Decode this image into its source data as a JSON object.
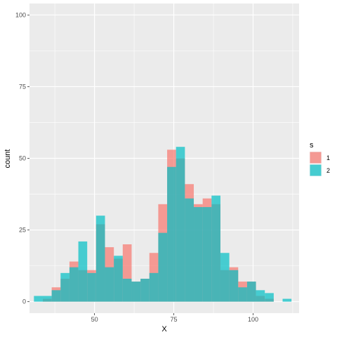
{
  "chart_data": {
    "type": "histogram",
    "xlabel": "X",
    "ylabel": "count",
    "xlim": [
      29.5,
      114.5
    ],
    "ylim": [
      -4,
      104
    ],
    "bin_width": 2.8,
    "x_ticks": [
      50,
      75,
      100
    ],
    "y_ticks": [
      0,
      25,
      50,
      75,
      100
    ],
    "grid": true,
    "legend": {
      "title": "s",
      "position": "right",
      "entries": [
        "1",
        "2"
      ]
    },
    "bin_starts": [
      30.9,
      33.7,
      36.5,
      39.3,
      42.1,
      44.9,
      47.7,
      50.5,
      53.3,
      56.1,
      58.9,
      61.7,
      64.5,
      67.3,
      70.1,
      72.9,
      75.7,
      78.5,
      81.3,
      84.1,
      86.9,
      89.7,
      92.5,
      95.3,
      98.1,
      100.9,
      103.7,
      106.5,
      109.3
    ],
    "series": [
      {
        "name": "1",
        "color": "#F8766D",
        "values": [
          0,
          1,
          5,
          8,
          14,
          11,
          11,
          27,
          19,
          15,
          20,
          7,
          8,
          17,
          34,
          53,
          50,
          41,
          34,
          36,
          34,
          11,
          12,
          7,
          7,
          2,
          1,
          0,
          0
        ]
      },
      {
        "name": "2",
        "color": "#00BFC4",
        "values": [
          2,
          2,
          4,
          10,
          12,
          21,
          10,
          30,
          12,
          16,
          8,
          7,
          8,
          10,
          24,
          47,
          54,
          36,
          33,
          33,
          37,
          17,
          11,
          5,
          7,
          4,
          3,
          0,
          1
        ]
      }
    ]
  }
}
